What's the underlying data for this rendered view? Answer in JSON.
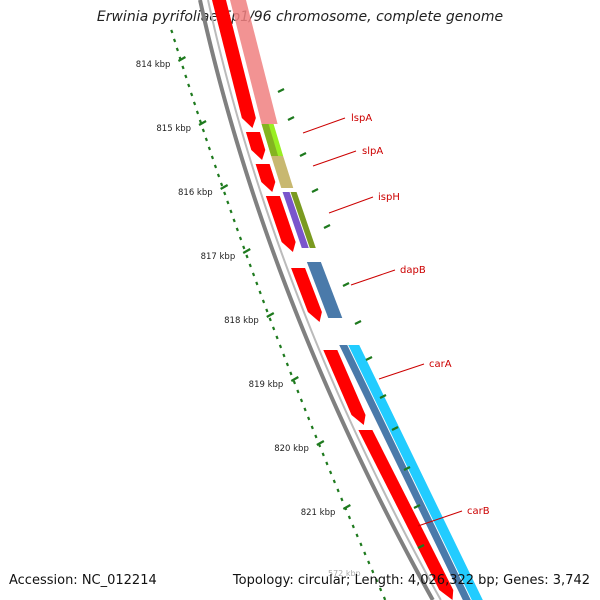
{
  "title": "Erwinia pyrifoliae Ep1/96 chromosome, complete genome",
  "footer": {
    "accession": "Accession: NC_012214",
    "stats": "Topology: circular; Length: 4,026,322 bp; Genes: 3,742"
  },
  "ruler": {
    "color": "#1e7a1e",
    "ticks": [
      "814 kbp",
      "815 kbp",
      "816 kbp",
      "817 kbp",
      "818 kbp",
      "819 kbp",
      "820 kbp",
      "821 kbp"
    ],
    "ghost_label": "572 kbp"
  },
  "genes": [
    {
      "name": "lspA",
      "color": "#cc0000"
    },
    {
      "name": "slpA",
      "color": "#cc0000"
    },
    {
      "name": "ispH",
      "color": "#cc0000"
    },
    {
      "name": "dapB",
      "color": "#cc0000"
    },
    {
      "name": "carA",
      "color": "#cc0000"
    },
    {
      "name": "carB",
      "color": "#cc0000"
    }
  ],
  "colors": {
    "backbone": "#808080",
    "forward_cds": "#ff0000",
    "cog_pink": "#f08080",
    "cog_lime": "#99ee22",
    "cog_olive": "#7a9a20",
    "cog_khaki": "#c8b870",
    "cog_purple": "#7a55cc",
    "cog_steelblue": "#4a7aaa",
    "cog_cyan": "#22ccff"
  }
}
